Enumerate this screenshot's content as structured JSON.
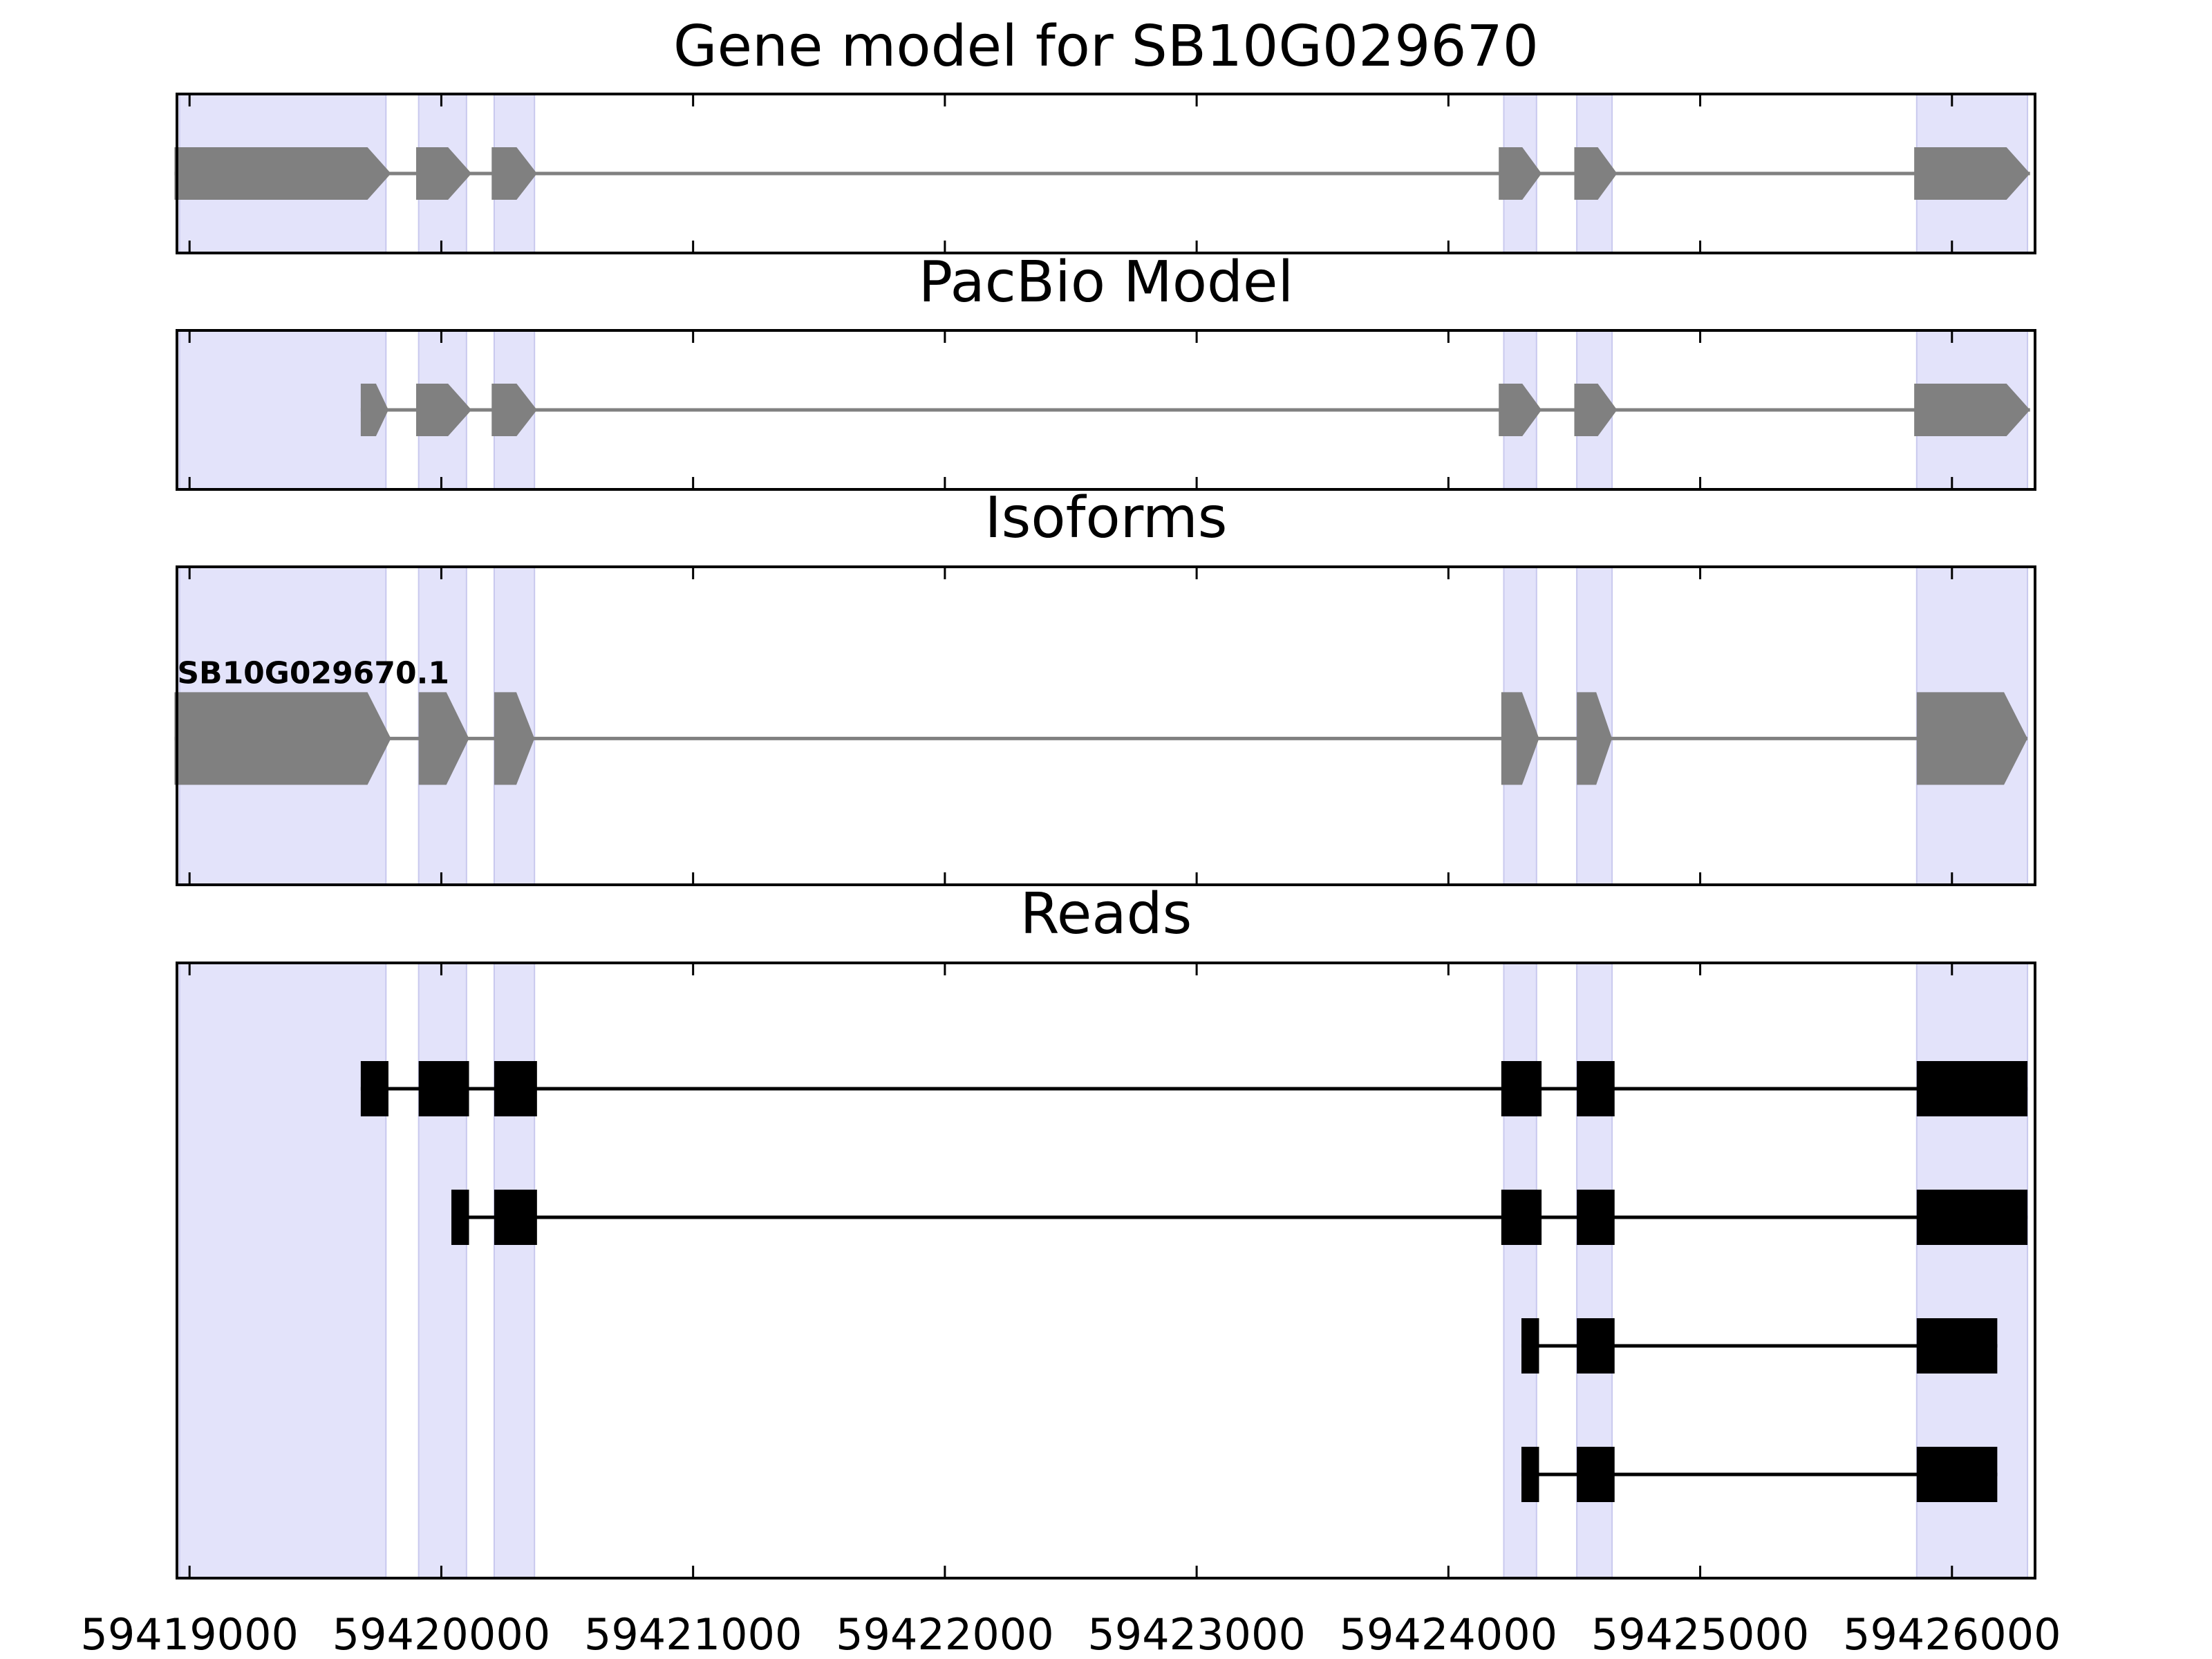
{
  "figure": {
    "colors": {
      "exon_shade": "#e3e3fa",
      "exon_shade_edge": "#c9c9ee",
      "gene_feature": "#808080",
      "read_feature": "#000000",
      "axes_frame": "#000000"
    },
    "x_axis": {
      "range": [
        59418950,
        59426330
      ],
      "ticks": [
        59419000,
        59420000,
        59421000,
        59422000,
        59423000,
        59424000,
        59425000,
        59426000
      ],
      "tick_labels": [
        "59419000",
        "59420000",
        "59421000",
        "59422000",
        "59423000",
        "59424000",
        "59425000",
        "59426000"
      ]
    },
    "exon_regions": [
      [
        59418960,
        59419780
      ],
      [
        59419910,
        59420100
      ],
      [
        59420210,
        59420370
      ],
      [
        59424220,
        59424350
      ],
      [
        59424510,
        59424650
      ],
      [
        59425860,
        59426300
      ]
    ]
  },
  "panels": {
    "gene_model": {
      "title": "Gene model for SB10G029670",
      "exons": [
        [
          59418940,
          59419800
        ],
        [
          59419900,
          59420120
        ],
        [
          59420200,
          59420380
        ],
        [
          59424200,
          59424370
        ],
        [
          59424500,
          59424670
        ],
        [
          59425850,
          59426310
        ]
      ],
      "strand": "+"
    },
    "pacbio_model": {
      "title": "PacBio Model",
      "exons": [
        [
          59419680,
          59419790
        ],
        [
          59419900,
          59420120
        ],
        [
          59420200,
          59420380
        ],
        [
          59424200,
          59424370
        ],
        [
          59424500,
          59424670
        ],
        [
          59425850,
          59426310
        ]
      ],
      "strand": "+"
    },
    "isoforms": {
      "title": "Isoforms",
      "items": [
        {
          "name": "SB10G029670.1",
          "exons": [
            [
              59418940,
              59419800
            ],
            [
              59419910,
              59420110
            ],
            [
              59420210,
              59420370
            ],
            [
              59424210,
              59424360
            ],
            [
              59424510,
              59424650
            ],
            [
              59425860,
              59426300
            ]
          ]
        }
      ]
    },
    "reads": {
      "title": "Reads",
      "items": [
        {
          "exons": [
            [
              59419680,
              59419790
            ],
            [
              59419910,
              59420110
            ],
            [
              59420210,
              59420380
            ],
            [
              59424210,
              59424370
            ],
            [
              59424510,
              59424660
            ],
            [
              59425860,
              59426300
            ]
          ]
        },
        {
          "exons": [
            [
              59420040,
              59420110
            ],
            [
              59420210,
              59420380
            ],
            [
              59424210,
              59424370
            ],
            [
              59424510,
              59424660
            ],
            [
              59425860,
              59426300
            ]
          ]
        },
        {
          "exons": [
            [
              59424290,
              59424360
            ],
            [
              59424510,
              59424660
            ],
            [
              59425860,
              59426180
            ]
          ]
        },
        {
          "exons": [
            [
              59424290,
              59424360
            ],
            [
              59424510,
              59424660
            ],
            [
              59425860,
              59426180
            ]
          ]
        }
      ]
    }
  }
}
